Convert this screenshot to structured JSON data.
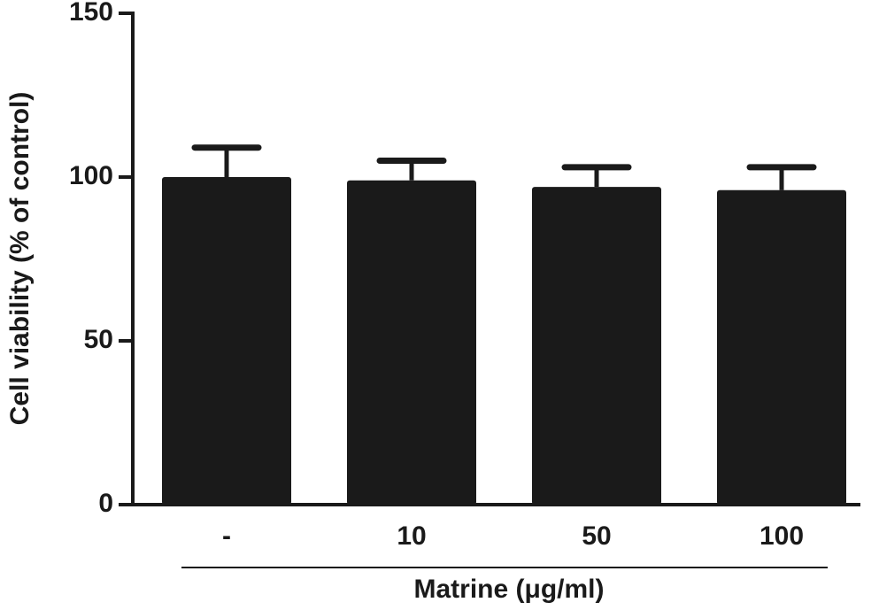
{
  "chart_data": {
    "type": "bar",
    "xlabel": "Matrine (μg/ml)",
    "ylabel": "Cell viability (% of control)",
    "categories": [
      "-",
      "10",
      "50",
      "100"
    ],
    "values": [
      100,
      99,
      97,
      96
    ],
    "errors": [
      9,
      6,
      6,
      7
    ],
    "color": "#1a1a1a",
    "ylim": [
      0,
      150
    ],
    "yticks": [
      0,
      50,
      100,
      150
    ]
  }
}
